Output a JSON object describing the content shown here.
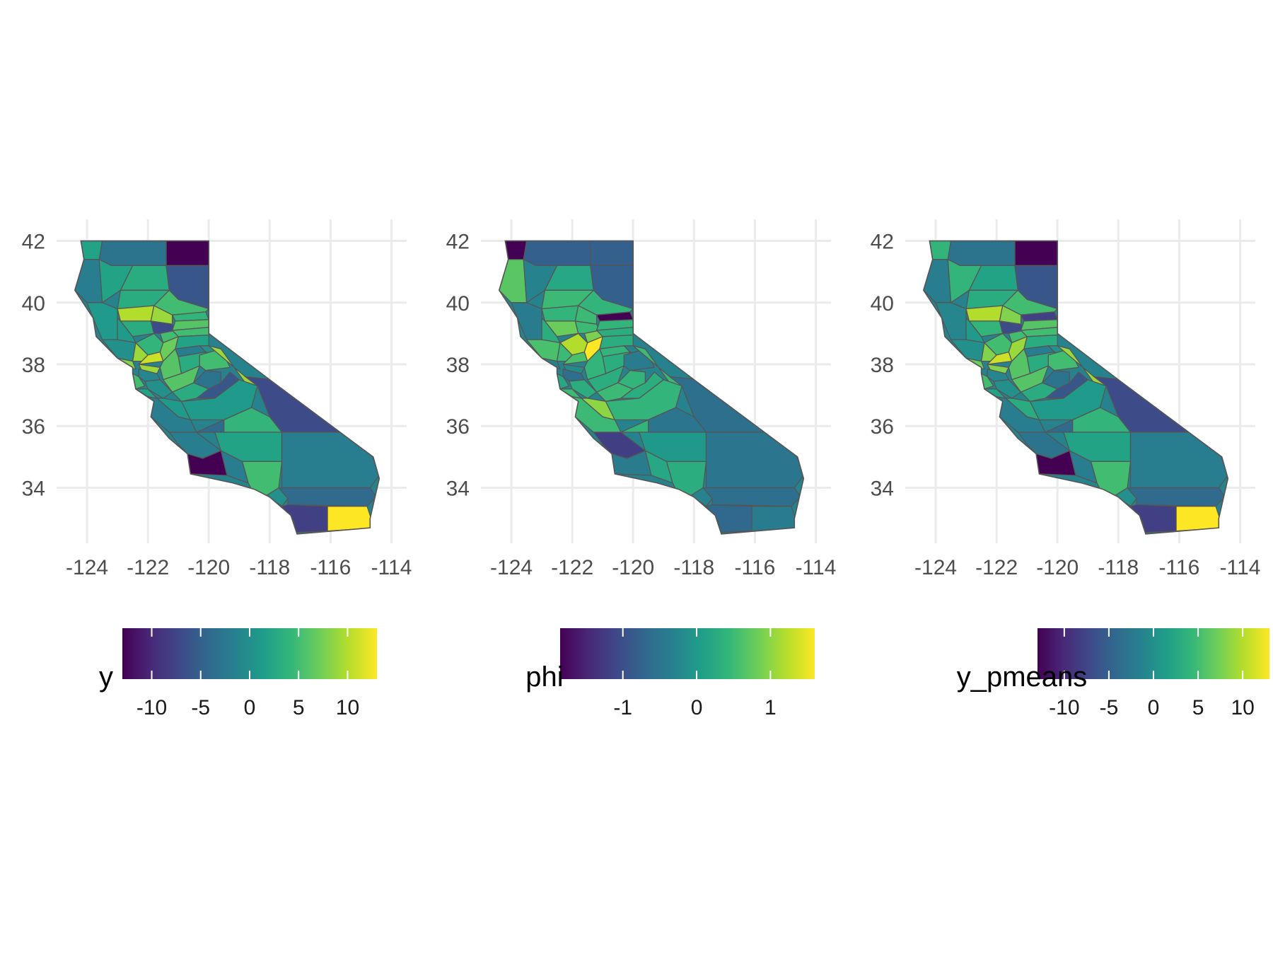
{
  "panels": [
    {
      "name": "y",
      "legend": {
        "title": "y",
        "ticks": [
          "-10",
          "-5",
          "0",
          "5",
          "10"
        ],
        "tick_values": [
          -10,
          -5,
          0,
          5,
          10
        ],
        "range": [
          -13,
          13
        ]
      },
      "counties": [
        {
          "id": "del-norte",
          "value": 2
        },
        {
          "id": "modoc",
          "value": -13
        },
        {
          "id": "siskiyou",
          "value": -3
        },
        {
          "id": "humboldt",
          "value": -2
        },
        {
          "id": "trinity",
          "value": 2
        },
        {
          "id": "shasta",
          "value": 3
        },
        {
          "id": "lassen",
          "value": -6
        },
        {
          "id": "tehama",
          "value": 3
        },
        {
          "id": "plumas",
          "value": 5
        },
        {
          "id": "mendocino",
          "value": 1
        },
        {
          "id": "glenn",
          "value": 10
        },
        {
          "id": "butte",
          "value": 9
        },
        {
          "id": "sierra",
          "value": 4
        },
        {
          "id": "colusa",
          "value": 3
        },
        {
          "id": "lake",
          "value": 1
        },
        {
          "id": "yuba",
          "value": -7
        },
        {
          "id": "nevada",
          "value": 6
        },
        {
          "id": "sutter",
          "value": 5
        },
        {
          "id": "placer",
          "value": 5
        },
        {
          "id": "yolo",
          "value": 4
        },
        {
          "id": "sonoma",
          "value": 0
        },
        {
          "id": "napa",
          "value": 9
        },
        {
          "id": "el-dorado",
          "value": 2
        },
        {
          "id": "sacramento",
          "value": 7
        },
        {
          "id": "marin",
          "value": 8
        },
        {
          "id": "solano",
          "value": 11
        },
        {
          "id": "amador",
          "value": -2
        },
        {
          "id": "alpine",
          "value": 0
        },
        {
          "id": "san-joaquin",
          "value": 6
        },
        {
          "id": "contra-costa",
          "value": 9
        },
        {
          "id": "calaveras",
          "value": 3
        },
        {
          "id": "tuolumne",
          "value": 5
        },
        {
          "id": "mono",
          "value": 9
        },
        {
          "id": "alameda",
          "value": -1
        },
        {
          "id": "stanislaus",
          "value": 6
        },
        {
          "id": "mariposa",
          "value": -3
        },
        {
          "id": "san-mateo",
          "value": 5
        },
        {
          "id": "santa-clara",
          "value": 0
        },
        {
          "id": "merced",
          "value": 3
        },
        {
          "id": "madera",
          "value": -6
        },
        {
          "id": "santa-cruz",
          "value": 2
        },
        {
          "id": "san-benito",
          "value": 1
        },
        {
          "id": "fresno",
          "value": 1
        },
        {
          "id": "inyo",
          "value": -7
        },
        {
          "id": "monterey",
          "value": -2
        },
        {
          "id": "kings",
          "value": -4
        },
        {
          "id": "tulare",
          "value": 4
        },
        {
          "id": "san-luis-obispo",
          "value": -2
        },
        {
          "id": "kern",
          "value": 2
        },
        {
          "id": "santa-barbara",
          "value": -13
        },
        {
          "id": "ventura",
          "value": -2
        },
        {
          "id": "los-angeles",
          "value": 5
        },
        {
          "id": "san-bernardino",
          "value": -2
        },
        {
          "id": "orange",
          "value": 0
        },
        {
          "id": "riverside",
          "value": -4
        },
        {
          "id": "san-diego",
          "value": -8
        },
        {
          "id": "imperial",
          "value": 13
        }
      ]
    },
    {
      "name": "phi",
      "legend": {
        "title": "phi",
        "ticks": [
          "-1",
          "0",
          "1"
        ],
        "tick_values": [
          -1,
          0,
          1
        ],
        "range": [
          -1.85,
          1.6
        ]
      },
      "counties": [
        {
          "id": "del-norte",
          "value": -1.85
        },
        {
          "id": "modoc",
          "value": -0.8
        },
        {
          "id": "siskiyou",
          "value": -0.8
        },
        {
          "id": "humboldt",
          "value": 0.7
        },
        {
          "id": "trinity",
          "value": -0.3
        },
        {
          "id": "shasta",
          "value": 0.2
        },
        {
          "id": "lassen",
          "value": -0.8
        },
        {
          "id": "tehama",
          "value": 0.5
        },
        {
          "id": "plumas",
          "value": 0.4
        },
        {
          "id": "mendocino",
          "value": -0.4
        },
        {
          "id": "glenn",
          "value": 0.4
        },
        {
          "id": "butte",
          "value": 0.5
        },
        {
          "id": "sierra",
          "value": -1.85
        },
        {
          "id": "colusa",
          "value": 0.8
        },
        {
          "id": "lake",
          "value": 0.3
        },
        {
          "id": "yuba",
          "value": 0.5
        },
        {
          "id": "nevada",
          "value": 0.4
        },
        {
          "id": "sutter",
          "value": 0.9
        },
        {
          "id": "placer",
          "value": 0.3
        },
        {
          "id": "yolo",
          "value": 1.2
        },
        {
          "id": "sonoma",
          "value": 0.6
        },
        {
          "id": "napa",
          "value": 0.5
        },
        {
          "id": "el-dorado",
          "value": 0.3
        },
        {
          "id": "sacramento",
          "value": 1.6
        },
        {
          "id": "marin",
          "value": -0.3
        },
        {
          "id": "solano",
          "value": 0.6
        },
        {
          "id": "amador",
          "value": 0.4
        },
        {
          "id": "alpine",
          "value": -0.3
        },
        {
          "id": "san-joaquin",
          "value": 0.4
        },
        {
          "id": "contra-costa",
          "value": -0.2
        },
        {
          "id": "calaveras",
          "value": 0.3
        },
        {
          "id": "tuolumne",
          "value": -0.4
        },
        {
          "id": "mono",
          "value": 0.5
        },
        {
          "id": "alameda",
          "value": -0.6
        },
        {
          "id": "stanislaus",
          "value": 0.3
        },
        {
          "id": "mariposa",
          "value": 0.4
        },
        {
          "id": "san-mateo",
          "value": 0.2
        },
        {
          "id": "santa-clara",
          "value": 0.3
        },
        {
          "id": "merced",
          "value": 0.5
        },
        {
          "id": "madera",
          "value": 0.3
        },
        {
          "id": "santa-cruz",
          "value": 0.5
        },
        {
          "id": "san-benito",
          "value": 1.0
        },
        {
          "id": "fresno",
          "value": 0.4
        },
        {
          "id": "inyo",
          "value": -0.6
        },
        {
          "id": "monterey",
          "value": 0.5
        },
        {
          "id": "kings",
          "value": 0.4
        },
        {
          "id": "tulare",
          "value": -0.5
        },
        {
          "id": "san-luis-obispo",
          "value": -1.2
        },
        {
          "id": "kern",
          "value": 0.0
        },
        {
          "id": "santa-barbara",
          "value": -0.4
        },
        {
          "id": "ventura",
          "value": 0.2
        },
        {
          "id": "los-angeles",
          "value": 0.3
        },
        {
          "id": "san-bernardino",
          "value": -0.5
        },
        {
          "id": "orange",
          "value": -0.3
        },
        {
          "id": "riverside",
          "value": -0.6
        },
        {
          "id": "san-diego",
          "value": -0.7
        },
        {
          "id": "imperial",
          "value": -0.4
        }
      ]
    },
    {
      "name": "y_pmeans",
      "legend": {
        "title": "y_pmeans",
        "ticks": [
          "-10",
          "-5",
          "0",
          "5",
          "10"
        ],
        "tick_values": [
          -10,
          -5,
          0,
          5,
          10
        ],
        "range": [
          -13,
          13
        ]
      },
      "counties": [
        {
          "id": "del-norte",
          "value": 4
        },
        {
          "id": "modoc",
          "value": -13
        },
        {
          "id": "siskiyou",
          "value": -3
        },
        {
          "id": "humboldt",
          "value": -2
        },
        {
          "id": "trinity",
          "value": 4
        },
        {
          "id": "shasta",
          "value": 2
        },
        {
          "id": "lassen",
          "value": -6
        },
        {
          "id": "tehama",
          "value": 3
        },
        {
          "id": "plumas",
          "value": 5
        },
        {
          "id": "mendocino",
          "value": -1
        },
        {
          "id": "glenn",
          "value": 10
        },
        {
          "id": "butte",
          "value": 8
        },
        {
          "id": "sierra",
          "value": -8
        },
        {
          "id": "colusa",
          "value": 4
        },
        {
          "id": "lake",
          "value": 1
        },
        {
          "id": "yuba",
          "value": -7
        },
        {
          "id": "nevada",
          "value": 6
        },
        {
          "id": "sutter",
          "value": 5
        },
        {
          "id": "placer",
          "value": 5
        },
        {
          "id": "yolo",
          "value": 5
        },
        {
          "id": "sonoma",
          "value": 0
        },
        {
          "id": "napa",
          "value": 8
        },
        {
          "id": "el-dorado",
          "value": 3
        },
        {
          "id": "sacramento",
          "value": 9
        },
        {
          "id": "marin",
          "value": 7
        },
        {
          "id": "solano",
          "value": 11
        },
        {
          "id": "amador",
          "value": -2
        },
        {
          "id": "alpine",
          "value": 0
        },
        {
          "id": "san-joaquin",
          "value": 6
        },
        {
          "id": "contra-costa",
          "value": 8
        },
        {
          "id": "calaveras",
          "value": 3
        },
        {
          "id": "tuolumne",
          "value": 5
        },
        {
          "id": "mono",
          "value": 9
        },
        {
          "id": "alameda",
          "value": -1
        },
        {
          "id": "stanislaus",
          "value": 6
        },
        {
          "id": "mariposa",
          "value": -3
        },
        {
          "id": "san-mateo",
          "value": 5
        },
        {
          "id": "santa-clara",
          "value": 0
        },
        {
          "id": "merced",
          "value": 3
        },
        {
          "id": "madera",
          "value": -6
        },
        {
          "id": "santa-cruz",
          "value": 2
        },
        {
          "id": "san-benito",
          "value": 3
        },
        {
          "id": "fresno",
          "value": 1
        },
        {
          "id": "inyo",
          "value": -7
        },
        {
          "id": "monterey",
          "value": -2
        },
        {
          "id": "kings",
          "value": -4
        },
        {
          "id": "tulare",
          "value": 4
        },
        {
          "id": "san-luis-obispo",
          "value": -3
        },
        {
          "id": "kern",
          "value": 2
        },
        {
          "id": "santa-barbara",
          "value": -13
        },
        {
          "id": "ventura",
          "value": -2
        },
        {
          "id": "los-angeles",
          "value": 5
        },
        {
          "id": "san-bernardino",
          "value": -2
        },
        {
          "id": "orange",
          "value": 0
        },
        {
          "id": "riverside",
          "value": -4
        },
        {
          "id": "san-diego",
          "value": -8
        },
        {
          "id": "imperial",
          "value": 13
        }
      ]
    }
  ],
  "axes": {
    "x_ticks": [
      "-124",
      "-122",
      "-120",
      "-118",
      "-116",
      "-114"
    ],
    "x_tick_values": [
      -124,
      -122,
      -120,
      -118,
      -116,
      -114
    ],
    "y_ticks": [
      "42",
      "40",
      "38",
      "36",
      "34"
    ],
    "y_tick_values": [
      42,
      40,
      38,
      36,
      34
    ],
    "x_range": [
      -125,
      -113.5
    ],
    "y_range": [
      32.2,
      42.7
    ]
  },
  "colors": {
    "viridis": [
      "#440154",
      "#482878",
      "#3e4989",
      "#31688e",
      "#26828e",
      "#1f9e89",
      "#35b779",
      "#6ece58",
      "#b5de2b",
      "#fde725"
    ],
    "grid": "#ebebeb",
    "county_border": "#555555"
  }
}
